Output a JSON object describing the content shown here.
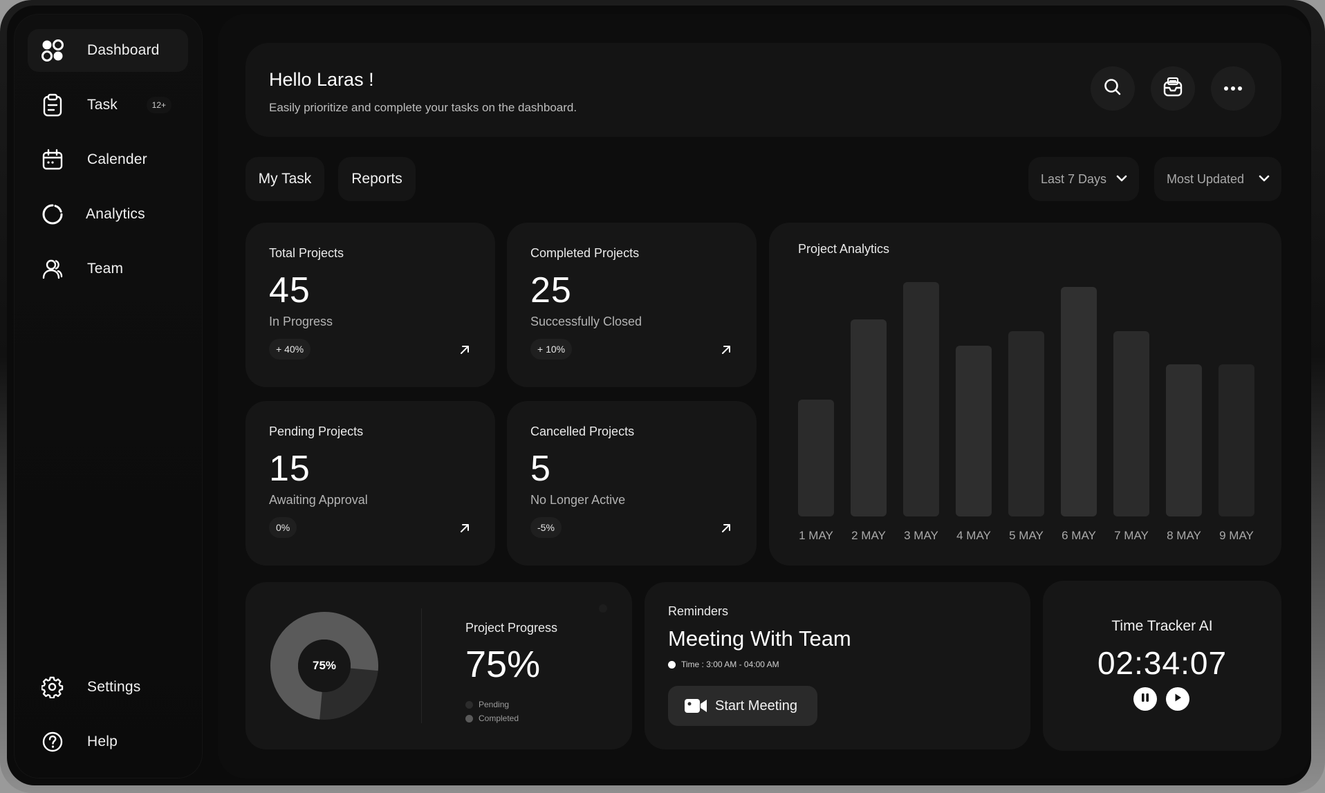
{
  "sidebar": {
    "items": [
      {
        "label": "Dashboard",
        "icon": "dashboard-icon"
      },
      {
        "label": "Task",
        "icon": "clipboard-icon",
        "badge": "12+"
      },
      {
        "label": "Calender",
        "icon": "calendar-icon"
      },
      {
        "label": "Analytics",
        "icon": "analytics-icon"
      },
      {
        "label": "Team",
        "icon": "team-icon"
      }
    ],
    "bottom": [
      {
        "label": "Settings",
        "icon": "gear-icon"
      },
      {
        "label": "Help",
        "icon": "help-icon"
      }
    ]
  },
  "header": {
    "title": "Hello Laras !",
    "subtitle": "Easily prioritize and complete your tasks on the dashboard."
  },
  "tabs": [
    "My Task",
    "Reports"
  ],
  "filters": {
    "range": "Last 7 Days",
    "sort": "Most Updated"
  },
  "stats": [
    {
      "title": "Total Projects",
      "value": "45",
      "sub": "In Progress",
      "change": "+ 40%"
    },
    {
      "title": "Completed Projects",
      "value": "25",
      "sub": "Successfully Closed",
      "change": "+ 10%"
    },
    {
      "title": "Pending Projects",
      "value": "15",
      "sub": "Awaiting Approval",
      "change": "0%"
    },
    {
      "title": "Cancelled Projects",
      "value": "5",
      "sub": "No Longer Active",
      "change": "-5%"
    }
  ],
  "chart_data": {
    "type": "bar",
    "title": "Project Analytics",
    "categories": [
      "1 MAY",
      "2 MAY",
      "3 MAY",
      "4 MAY",
      "5 MAY",
      "6 MAY",
      "7 MAY",
      "8 MAY",
      "9 MAY"
    ],
    "values": [
      50,
      84,
      100,
      73,
      79,
      98,
      79,
      65,
      65
    ],
    "ylim": [
      0,
      100
    ],
    "grid": false,
    "colors": [
      "#2b2b2b",
      "#2e2e2e",
      "#2a2a2a",
      "#2e2e2e",
      "#282828",
      "#303030",
      "#2b2b2b",
      "#2e2e2e",
      "#242424"
    ]
  },
  "progress": {
    "title": "Project Progress",
    "value": "75%",
    "donut_label": "75%",
    "completed_fraction": 0.75,
    "legend": [
      {
        "label": "Pending",
        "color": "#2c2c2c"
      },
      {
        "label": "Completed",
        "color": "#5a5a5a"
      }
    ]
  },
  "reminder": {
    "title": "Reminders",
    "event": "Meeting With Team",
    "time": "Time : 3:00 AM - 04:00 AM",
    "button": "Start Meeting"
  },
  "tracker": {
    "title": "Time Tracker AI",
    "time": "02:34:07"
  }
}
